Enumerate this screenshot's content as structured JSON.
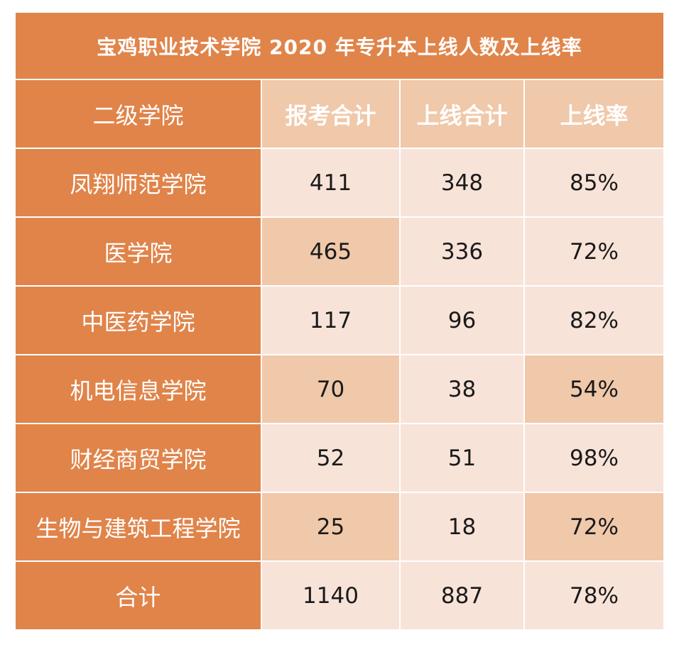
{
  "title": "宝鸡职业技术学院 2020 年专升本上线人数及上线率",
  "headers": [
    "二级学院",
    "报考合计",
    "上线合计",
    "上线率"
  ],
  "rows": [
    [
      "凤翔师范学院",
      "411",
      "348",
      "85%"
    ],
    [
      "医学院",
      "465",
      "336",
      "72%"
    ],
    [
      "中医药学院",
      "117",
      "96",
      "82%"
    ],
    [
      "机电信息学院",
      "70",
      "38",
      "54%"
    ],
    [
      "财经商贸学院",
      "52",
      "51",
      "98%"
    ],
    [
      "生物与建筑工程学院",
      "25",
      "18",
      "72%"
    ],
    [
      "合计",
      "1140",
      "887",
      "78%"
    ]
  ],
  "colors": {
    "label_bg": "#e0844a",
    "cell_light": "#f8e3d9",
    "cell_dark": "#f0c8aa",
    "border": "#ffffff"
  }
}
